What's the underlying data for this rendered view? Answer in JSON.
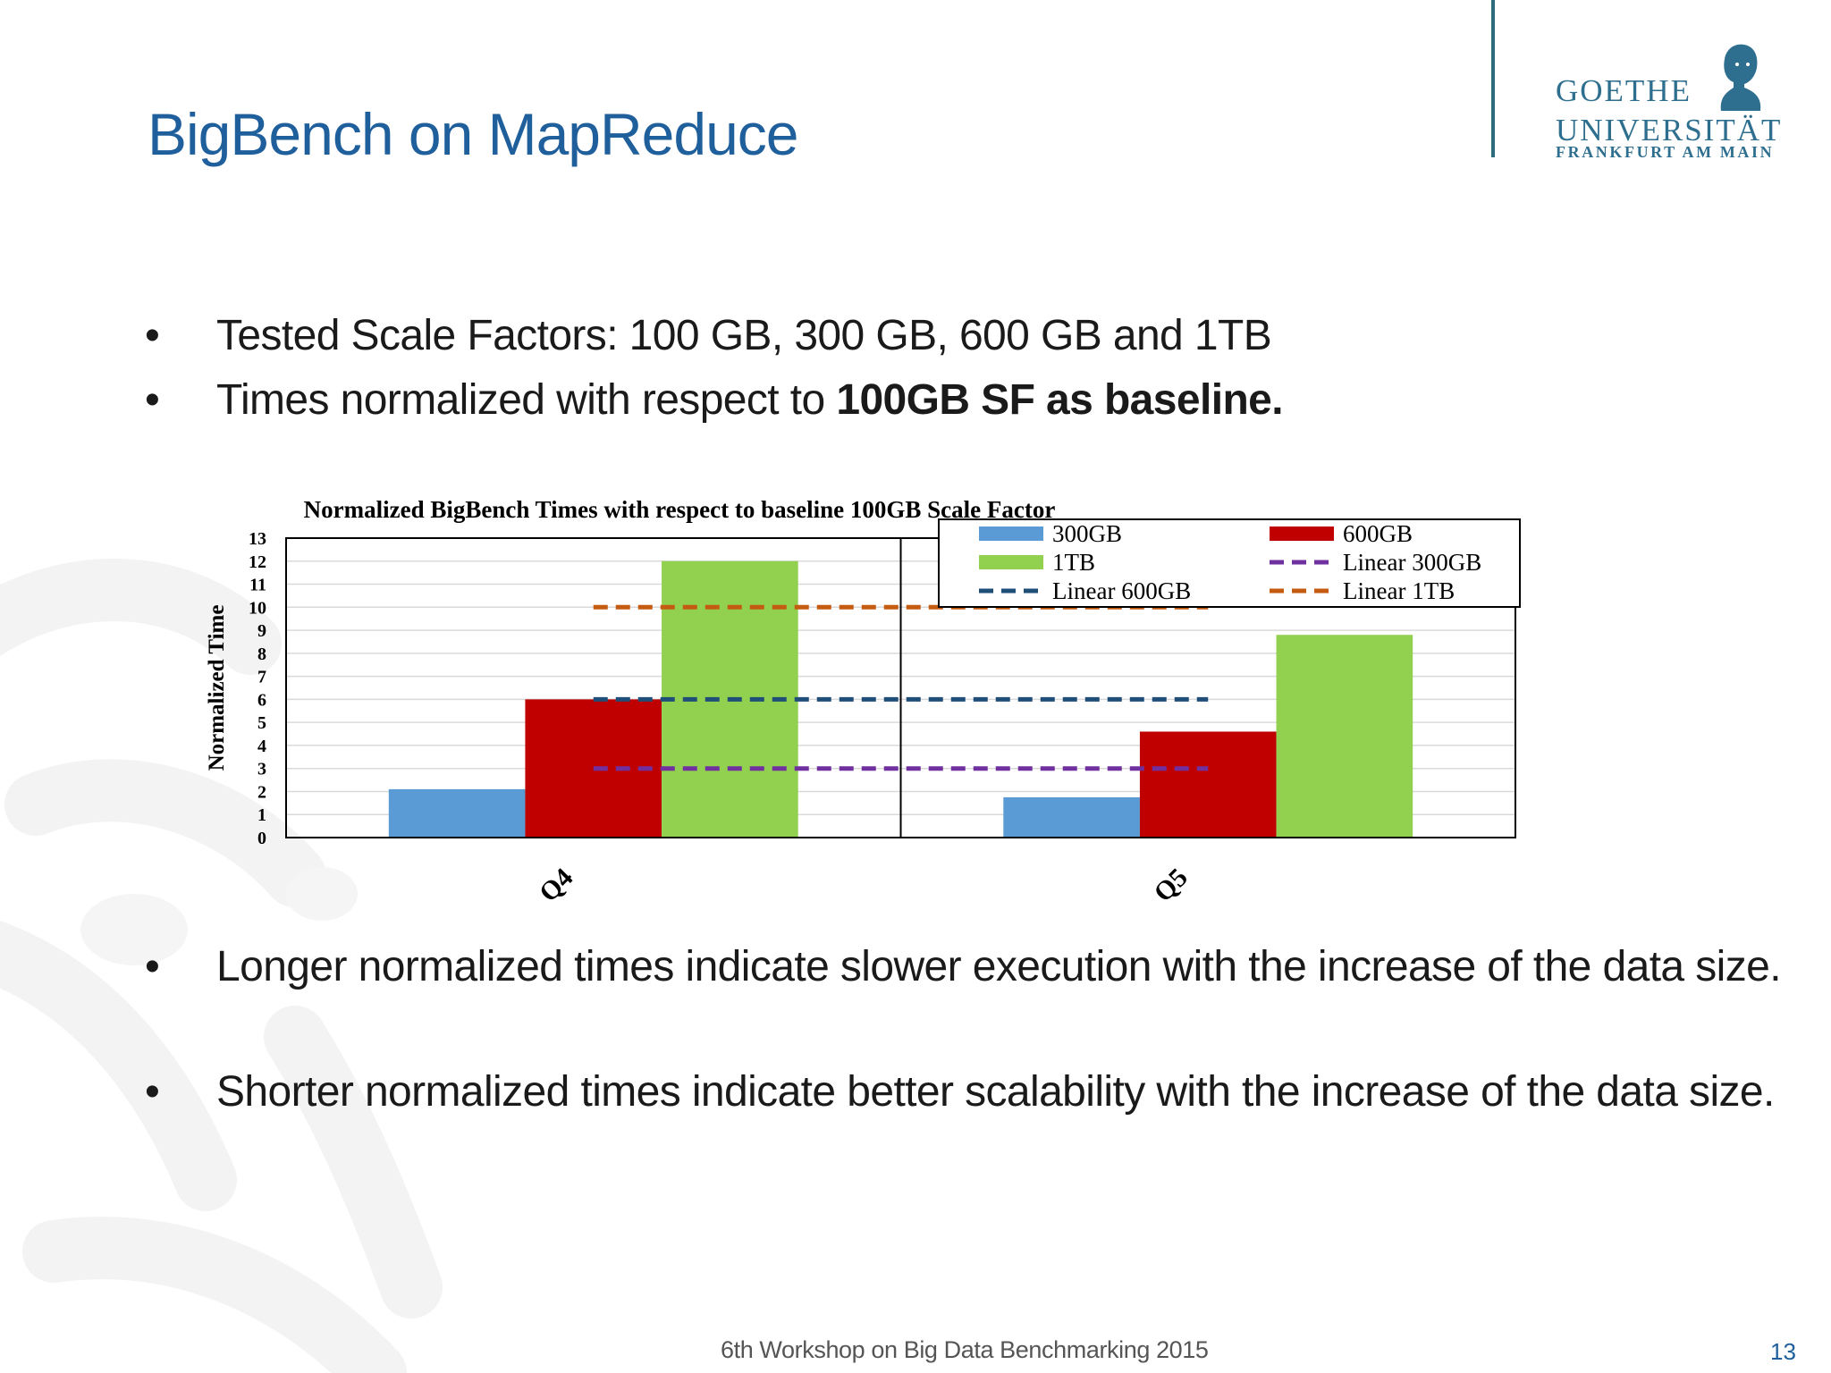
{
  "slide": {
    "title": "BigBench on MapReduce",
    "bullets": [
      {
        "plain": "Tested Scale Factors: 100 GB, 300 GB, 600 GB and 1TB",
        "bold": ""
      },
      {
        "plain": "Times normalized with respect to ",
        "bold": "100GB SF as baseline."
      }
    ],
    "bullets_bottom": [
      "Longer normalized times indicate slower execution with the increase of the data size.",
      "Shorter normalized times indicate better scalability with the increase of the data size."
    ],
    "footer": "6th Workshop on Big Data Benchmarking 2015",
    "page_number": "13"
  },
  "logo": {
    "line1": "GOETHE",
    "line2": "UNIVERSITÄT",
    "line3": "FRANKFURT AM MAIN",
    "color": "#2e6e8e",
    "icon": "goethe-bust-icon"
  },
  "theme": {
    "title_color": "#1f5f9c"
  },
  "chart_data": {
    "type": "bar",
    "title": "Normalized BigBench Times with respect to baseline 100GB Scale Factor",
    "ylabel": "Normalized Time",
    "xlabel": "",
    "ylim": [
      0,
      13
    ],
    "yticks": [
      0,
      1,
      2,
      3,
      4,
      5,
      6,
      7,
      8,
      9,
      10,
      11,
      12,
      13
    ],
    "grid": true,
    "legend_position": "top-right",
    "categories": [
      "Q4",
      "Q5"
    ],
    "series": [
      {
        "name": "300GB",
        "values": [
          2.1,
          1.75
        ],
        "color": "#5b9bd5"
      },
      {
        "name": "600GB",
        "values": [
          6.0,
          4.6
        ],
        "color": "#c00000"
      },
      {
        "name": "1TB",
        "values": [
          12.0,
          8.8
        ],
        "color": "#92d050"
      }
    ],
    "reference_lines": [
      {
        "name": "Linear 300GB",
        "value": 3,
        "color": "#7030a0"
      },
      {
        "name": "Linear 600GB",
        "value": 6,
        "color": "#1f4e79"
      },
      {
        "name": "Linear 1TB",
        "value": 10,
        "color": "#c55a11"
      }
    ]
  }
}
